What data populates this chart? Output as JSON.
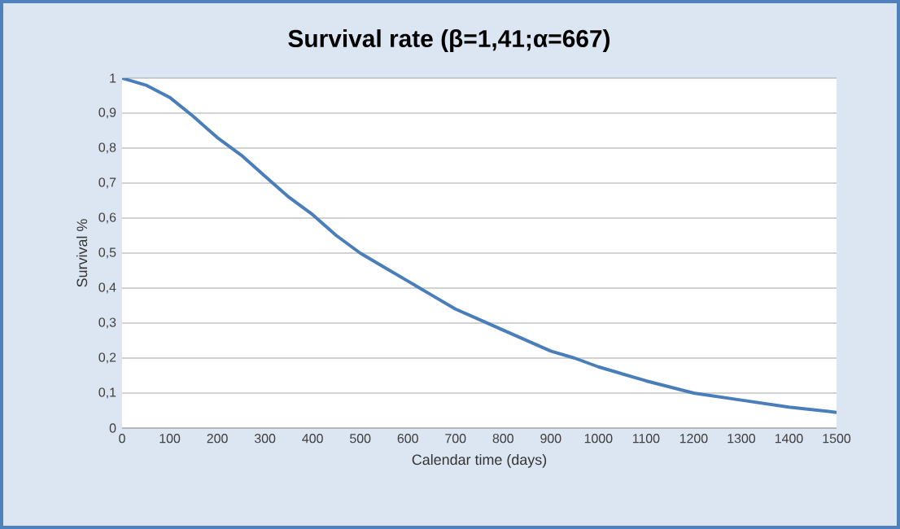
{
  "chart_data": {
    "type": "line",
    "title": "Survival rate (β=1,41;α=667)",
    "xlabel": "Calendar time (days)",
    "ylabel": "Survival %",
    "x": [
      0,
      50,
      100,
      150,
      200,
      250,
      300,
      350,
      400,
      450,
      500,
      550,
      600,
      650,
      700,
      750,
      800,
      850,
      900,
      950,
      1000,
      1100,
      1200,
      1300,
      1400,
      1500
    ],
    "values": [
      1.0,
      0.98,
      0.945,
      0.89,
      0.83,
      0.78,
      0.72,
      0.66,
      0.61,
      0.55,
      0.5,
      0.46,
      0.42,
      0.38,
      0.34,
      0.31,
      0.28,
      0.25,
      0.22,
      0.2,
      0.175,
      0.135,
      0.1,
      0.08,
      0.06,
      0.045
    ],
    "color": "#4a7ebb",
    "marker": "none",
    "line_style": "solid",
    "grid": "y",
    "xlim": [
      0,
      1500
    ],
    "ylim": [
      0,
      1
    ],
    "xticks": [
      0,
      100,
      200,
      300,
      400,
      500,
      600,
      700,
      800,
      900,
      1000,
      1100,
      1200,
      1300,
      1400,
      1500
    ],
    "yticks": [
      0,
      {
        "value": 0.1,
        "label": "0,1"
      },
      {
        "value": 0.2,
        "label": "0,2"
      },
      {
        "value": 0.3,
        "label": "0,3"
      },
      {
        "value": 0.4,
        "label": "0,4"
      },
      {
        "value": 0.5,
        "label": "0,5"
      },
      {
        "value": 0.6,
        "label": "0,6"
      },
      {
        "value": 0.7,
        "label": "0,7"
      },
      {
        "value": 0.8,
        "label": "0,8"
      },
      {
        "value": 0.9,
        "label": "0,9"
      },
      1
    ]
  }
}
